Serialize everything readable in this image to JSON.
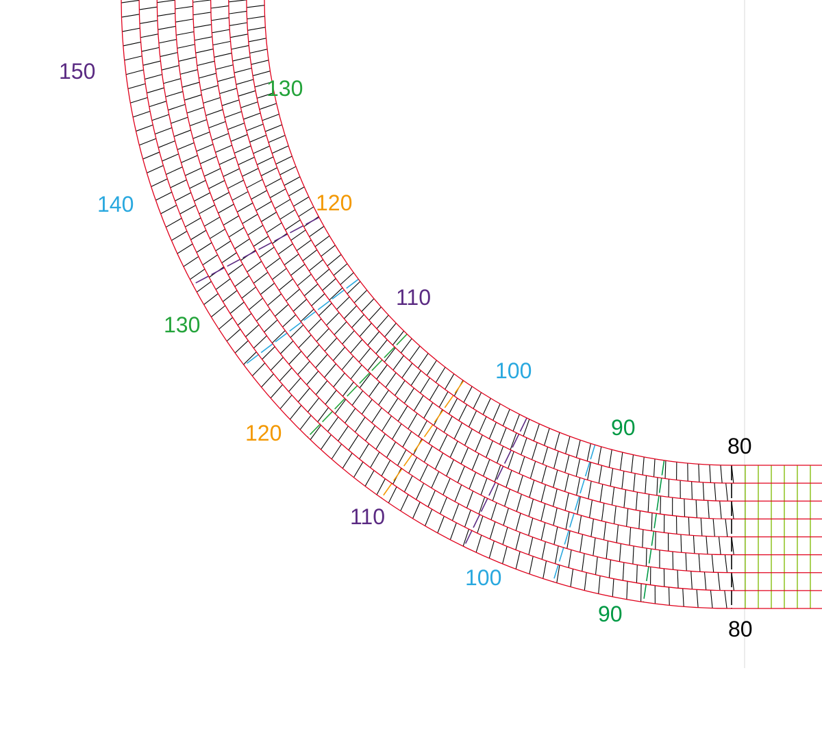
{
  "diagram": {
    "description_colors": {
      "ring_lines": "#e0001b",
      "spokes": "#000000",
      "straight_spokes": "#8dc21f",
      "guide_line": "#d9d9d9"
    },
    "outer_labels": [
      {
        "text": "150",
        "color": "#5a2a82"
      },
      {
        "text": "140",
        "color": "#29a8df"
      },
      {
        "text": "130",
        "color": "#23a33a"
      },
      {
        "text": "120",
        "color": "#f39800"
      },
      {
        "text": "110",
        "color": "#5a2a82"
      },
      {
        "text": "100",
        "color": "#29a8df"
      },
      {
        "text": "90",
        "color": "#009944"
      },
      {
        "text": "80",
        "color": "#000000"
      }
    ],
    "inner_labels": [
      {
        "text": "130",
        "color": "#23a33a"
      },
      {
        "text": "120",
        "color": "#f39800"
      },
      {
        "text": "110",
        "color": "#5a2a82"
      },
      {
        "text": "100",
        "color": "#29a8df"
      },
      {
        "text": "90",
        "color": "#009944"
      },
      {
        "text": "80",
        "color": "#000000"
      }
    ]
  }
}
